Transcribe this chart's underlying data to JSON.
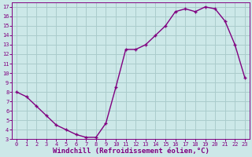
{
  "x": [
    0,
    1,
    2,
    3,
    4,
    5,
    6,
    7,
    8,
    9,
    10,
    11,
    12,
    13,
    14,
    15,
    16,
    17,
    18,
    19,
    20,
    21,
    22,
    23
  ],
  "y": [
    8.0,
    7.5,
    6.5,
    5.5,
    4.5,
    4.0,
    3.5,
    3.2,
    3.2,
    4.7,
    8.5,
    12.5,
    12.5,
    13.0,
    14.0,
    15.0,
    16.5,
    16.8,
    16.5,
    17.0,
    16.8,
    15.5,
    13.0,
    9.5
  ],
  "line_color": "#800080",
  "marker": "+",
  "marker_color": "#800080",
  "bg_color": "#cce8e8",
  "grid_color": "#aacccc",
  "xlabel": "Windchill (Refroidissement éolien,°C)",
  "xlabel_color": "#800080",
  "tick_color": "#800080",
  "spine_color": "#800080",
  "xlim": [
    -0.5,
    23.5
  ],
  "ylim": [
    3,
    17.5
  ],
  "yticks": [
    3,
    4,
    5,
    6,
    7,
    8,
    9,
    10,
    11,
    12,
    13,
    14,
    15,
    16,
    17
  ],
  "xticks": [
    0,
    1,
    2,
    3,
    4,
    5,
    6,
    7,
    8,
    9,
    10,
    11,
    12,
    13,
    14,
    15,
    16,
    17,
    18,
    19,
    20,
    21,
    22,
    23
  ],
  "linewidth": 1.0,
  "markersize": 3.5,
  "tick_fontsize": 5.0,
  "xlabel_fontsize": 6.5
}
